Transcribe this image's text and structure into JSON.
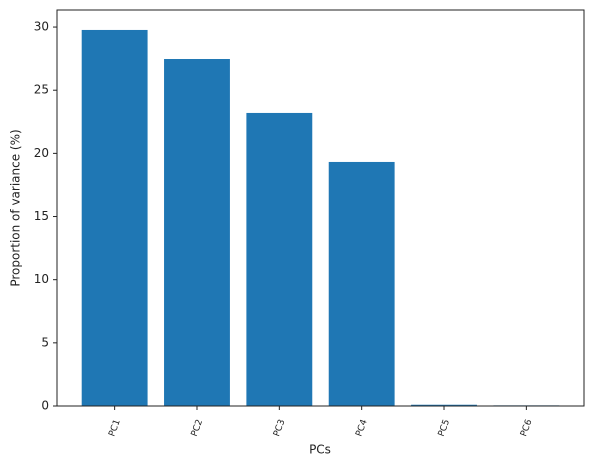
{
  "chart_data": {
    "type": "bar",
    "x_label": "PCs",
    "y_label": "Proportion of variance (%)",
    "categories": [
      "PC1",
      "PC2",
      "PC3",
      "PC4",
      "PC5",
      "PC6"
    ],
    "values": [
      29.77,
      27.47,
      23.2,
      19.32,
      0.1,
      0.05
    ],
    "color": "#1f77b4",
    "ylim": [
      0,
      31.35
    ],
    "yticks": [
      0,
      5,
      10,
      15,
      20,
      25,
      30
    ],
    "grid": false
  }
}
